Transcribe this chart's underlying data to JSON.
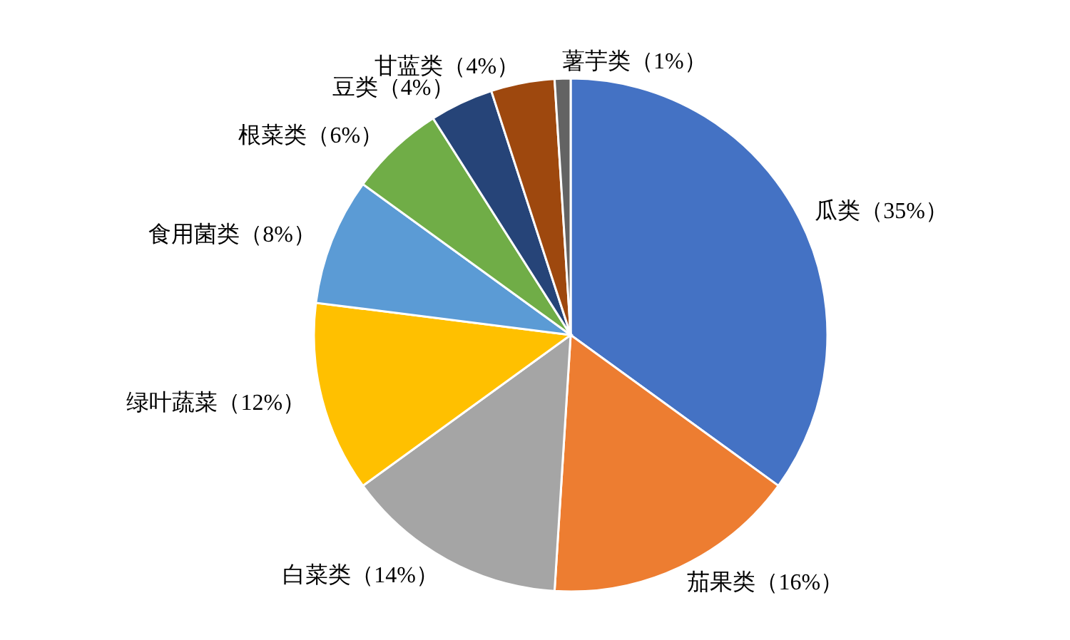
{
  "chart_data": {
    "type": "pie",
    "categories": [
      "瓜类",
      "茄果类",
      "白菜类",
      "绿叶蔬菜",
      "食用菌类",
      "根菜类",
      "豆类",
      "甘蓝类",
      "薯芋类"
    ],
    "values": [
      35,
      16,
      14,
      12,
      8,
      6,
      4,
      4,
      1
    ],
    "colors": [
      "#4472c4",
      "#ed7d31",
      "#a5a5a5",
      "#ffc000",
      "#5b9bd5",
      "#70ad47",
      "#264478",
      "#9e480e",
      "#636363"
    ],
    "value_labels": [
      "（35%）",
      "（16%）",
      "（14%）",
      "（12%）",
      "（8%）",
      "（6%）",
      "（4%）",
      "（4%）",
      "（1%）"
    ]
  }
}
